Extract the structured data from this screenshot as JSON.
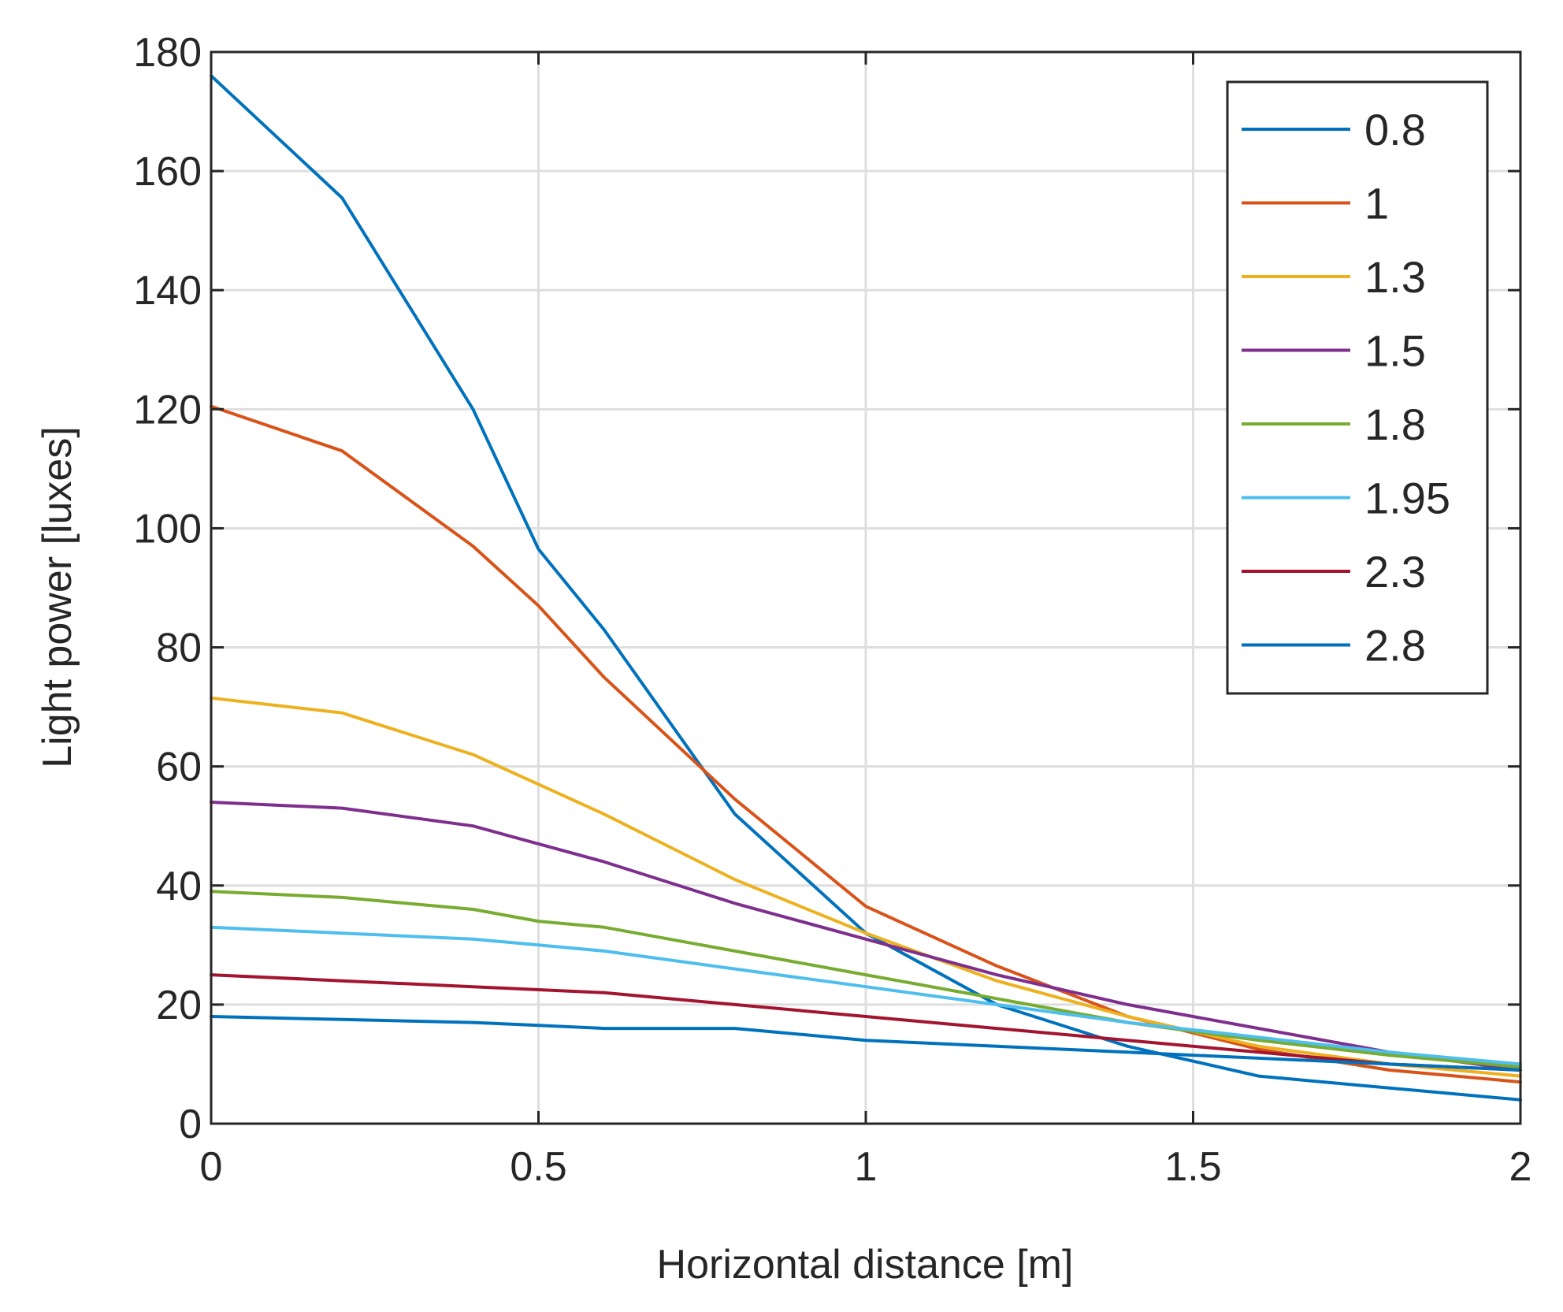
{
  "chart_data": {
    "type": "line",
    "title": "",
    "xlabel": "Horizontal distance [m]",
    "ylabel": "Light power [luxes]",
    "xlim": [
      0,
      2
    ],
    "ylim": [
      0,
      180
    ],
    "xticks": [
      0,
      0.5,
      1,
      1.5,
      2
    ],
    "xtick_labels": [
      "0",
      "0.5",
      "1",
      "1.5",
      "2"
    ],
    "yticks": [
      0,
      20,
      40,
      60,
      80,
      100,
      120,
      140,
      160,
      180
    ],
    "ytick_labels": [
      "0",
      "20",
      "40",
      "60",
      "80",
      "100",
      "120",
      "140",
      "160",
      "180"
    ],
    "grid": true,
    "legend_position": "top-right",
    "series": [
      {
        "name": "0.8",
        "color": "#0072BD",
        "x": [
          0,
          0.2,
          0.4,
          0.5,
          0.6,
          0.8,
          1.0,
          1.2,
          1.4,
          1.6,
          1.8,
          2.0
        ],
        "y": [
          176,
          155.5,
          120,
          96.5,
          83,
          52,
          32,
          20,
          13,
          8,
          6,
          4
        ]
      },
      {
        "name": "1",
        "color": "#D95319",
        "x": [
          0,
          0.2,
          0.4,
          0.5,
          0.6,
          0.8,
          1.0,
          1.2,
          1.4,
          1.6,
          1.8,
          2.0
        ],
        "y": [
          120.5,
          113,
          97,
          87,
          75,
          54.5,
          36.5,
          26.5,
          18,
          12.5,
          9,
          7
        ]
      },
      {
        "name": "1.3",
        "color": "#EDB120",
        "x": [
          0,
          0.2,
          0.4,
          0.5,
          0.6,
          0.8,
          1.0,
          1.2,
          1.4,
          1.6,
          1.8,
          2.0
        ],
        "y": [
          71.5,
          69,
          62,
          57,
          52,
          41,
          32,
          24,
          18,
          13,
          10,
          8
        ]
      },
      {
        "name": "1.5",
        "color": "#7E2F8E",
        "x": [
          0,
          0.2,
          0.4,
          0.5,
          0.6,
          0.8,
          1.0,
          1.2,
          1.4,
          1.6,
          1.8,
          2.0
        ],
        "y": [
          54,
          53,
          50,
          47,
          44,
          37,
          31,
          25,
          20,
          16,
          12,
          9
        ]
      },
      {
        "name": "1.8",
        "color": "#77AC30",
        "x": [
          0,
          0.2,
          0.4,
          0.5,
          0.6,
          0.8,
          1.0,
          1.2,
          1.4,
          1.6,
          1.8,
          2.0
        ],
        "y": [
          39,
          38,
          36,
          34,
          33,
          29,
          25,
          21,
          17,
          14,
          11.5,
          9.5
        ]
      },
      {
        "name": "1.95",
        "color": "#4DBEEE",
        "x": [
          0,
          0.2,
          0.4,
          0.5,
          0.6,
          0.8,
          1.0,
          1.2,
          1.4,
          1.6,
          1.8,
          2.0
        ],
        "y": [
          33,
          32,
          31,
          30,
          29,
          26,
          23,
          20,
          17,
          14.5,
          12,
          10
        ]
      },
      {
        "name": "2.3",
        "color": "#A2142F",
        "x": [
          0,
          0.2,
          0.4,
          0.5,
          0.6,
          0.8,
          1.0,
          1.2,
          1.4,
          1.6,
          1.8,
          2.0
        ],
        "y": [
          25,
          24,
          23,
          22.5,
          22,
          20,
          18,
          16,
          14,
          12,
          10,
          9
        ]
      },
      {
        "name": "2.8",
        "color": "#0072BD",
        "x": [
          0,
          0.2,
          0.4,
          0.5,
          0.6,
          0.8,
          1.0,
          1.2,
          1.4,
          1.6,
          1.8,
          2.0
        ],
        "y": [
          18,
          17.5,
          17,
          16.5,
          16,
          16,
          14,
          13,
          12,
          11,
          10,
          9
        ]
      }
    ]
  }
}
